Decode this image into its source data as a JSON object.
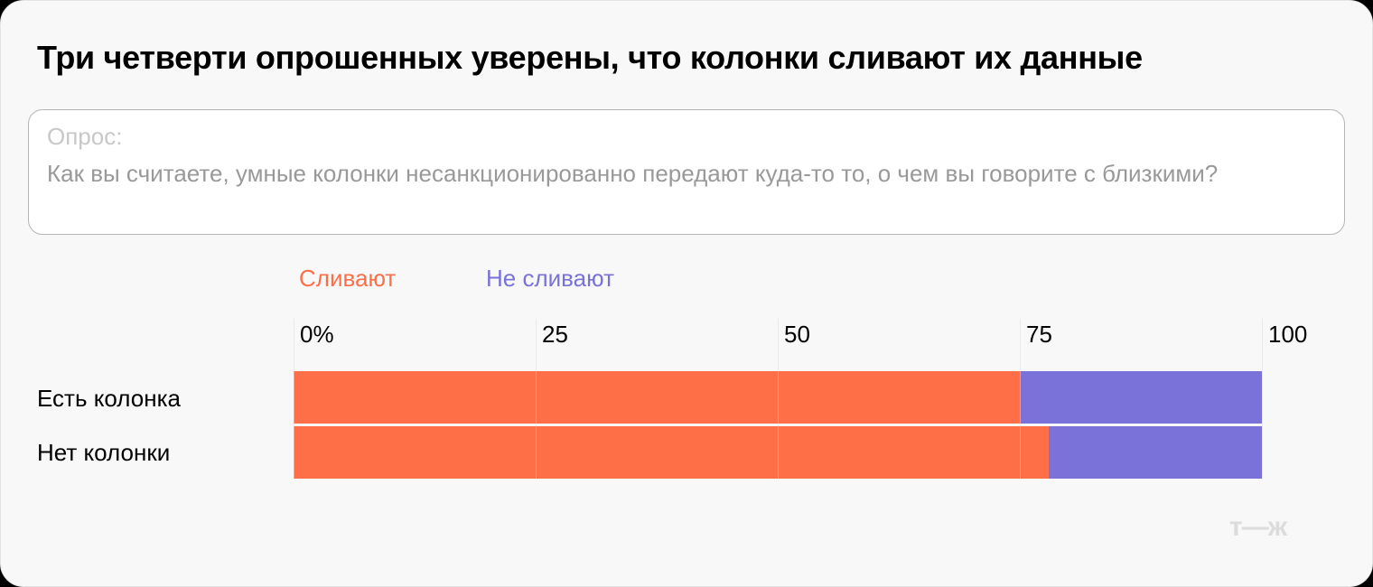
{
  "header": {
    "title": "Три четверти опрошенных уверены, что колонки сливают их данные"
  },
  "survey": {
    "label": "Опрос:",
    "question": "Как вы считаете, умные колонки несанкционированно передают куда-то то, о чем вы говорите с близкими?"
  },
  "legend": {
    "items": [
      {
        "label": "Сливают",
        "color": "#ff6f47"
      },
      {
        "label": "Не сливают",
        "color": "#7a72d9"
      }
    ]
  },
  "axis": {
    "ticks": [
      "0%",
      "25",
      "50",
      "75",
      "100"
    ]
  },
  "rows": [
    {
      "label": "Есть колонка",
      "leak": 75,
      "no_leak": 25
    },
    {
      "label": "Нет колонки",
      "leak": 78,
      "no_leak": 22
    }
  ],
  "logo": {
    "text": "т—ж"
  },
  "chart_data": {
    "type": "bar",
    "orientation": "horizontal",
    "stacked": true,
    "title": "Три четверти опрошенных уверены, что колонки сливают их данные",
    "subtitle": "Опрос: Как вы считаете, умные колонки несанкционированно передают куда-то то, о чем вы говорите с близкими?",
    "categories": [
      "Есть колонка",
      "Нет колонки"
    ],
    "series": [
      {
        "name": "Сливают",
        "color": "#ff6f47",
        "values": [
          75,
          78
        ]
      },
      {
        "name": "Не сливают",
        "color": "#7a72d9",
        "values": [
          25,
          22
        ]
      }
    ],
    "xlabel": "",
    "ylabel": "",
    "xlim": [
      0,
      100
    ],
    "xticks": [
      "0%",
      "25",
      "50",
      "75",
      "100"
    ],
    "grid": true,
    "legend_position": "top"
  }
}
